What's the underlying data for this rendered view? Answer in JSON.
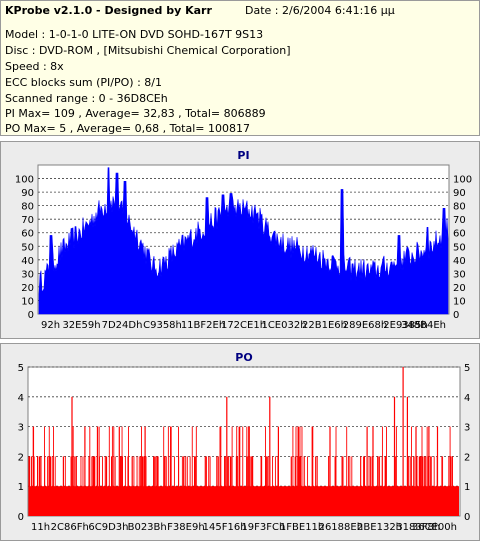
{
  "info": {
    "title": "KProbe v2.1.0 - Designed by Karr",
    "date": "Date : 2/6/2004 6:41:16 μμ",
    "lines": [
      "Model : 1-0-1-0 LITE-ON DVD SOHD-167T    9S13",
      "Disc : DVD-ROM ,  [Mitsubishi Chemical Corporation]",
      "Speed : 8x",
      "ECC blocks sum (PI/PO) : 8/1",
      "Scanned range : 0 - 36D8CEh",
      "PI Max= 109 , Average= 32,83 , Total= 806889",
      "PO Max= 5 , Average= 0,68 , Total= 100817"
    ]
  },
  "chart_data": [
    {
      "type": "area",
      "title": "PI",
      "ylim": [
        0,
        110
      ],
      "yticks": [
        0,
        10,
        20,
        30,
        40,
        50,
        60,
        70,
        80,
        90,
        100
      ],
      "xlabels": [
        "92h",
        "32E59h",
        "7D24Dh",
        "C9358h",
        "11BF2Eh",
        "172CE1h",
        "1CE032h",
        "22B1E6h",
        "289E68h",
        "2E9385h",
        "348B4Eh"
      ],
      "grid": true,
      "color": "#0000ff",
      "profile": [
        [
          0,
          22
        ],
        [
          2,
          30
        ],
        [
          5,
          44
        ],
        [
          8,
          55
        ],
        [
          10,
          60
        ],
        [
          12,
          66
        ],
        [
          14,
          74
        ],
        [
          16,
          80
        ],
        [
          18,
          83
        ],
        [
          20,
          76
        ],
        [
          22,
          68
        ],
        [
          24,
          58
        ],
        [
          26,
          46
        ],
        [
          27,
          40
        ],
        [
          28,
          34
        ],
        [
          30,
          36
        ],
        [
          33,
          45
        ],
        [
          37,
          56
        ],
        [
          40,
          63
        ],
        [
          44,
          72
        ],
        [
          48,
          78
        ],
        [
          52,
          76
        ],
        [
          54,
          70
        ],
        [
          56,
          62
        ],
        [
          58,
          56
        ],
        [
          61,
          50
        ],
        [
          64,
          48
        ],
        [
          67,
          45
        ],
        [
          70,
          40
        ],
        [
          73,
          37
        ],
        [
          76,
          33
        ],
        [
          79,
          33
        ],
        [
          81,
          31
        ],
        [
          84,
          34
        ],
        [
          87,
          37
        ],
        [
          90,
          42
        ],
        [
          93,
          45
        ],
        [
          96,
          50
        ],
        [
          98,
          56
        ],
        [
          100,
          64
        ]
      ],
      "spikes": [
        [
          3,
          58
        ],
        [
          17,
          108
        ],
        [
          19,
          104
        ],
        [
          21,
          98
        ],
        [
          41,
          86
        ],
        [
          45,
          88
        ],
        [
          47,
          89
        ],
        [
          53,
          74
        ],
        [
          74,
          92
        ],
        [
          88,
          58
        ],
        [
          95,
          64
        ],
        [
          99,
          78
        ]
      ],
      "noise": 9
    },
    {
      "type": "bar",
      "title": "PO",
      "ylim": [
        0,
        5
      ],
      "yticks": [
        0,
        1,
        2,
        3,
        4,
        5
      ],
      "xlabels": [
        "11h",
        "2C86Fh",
        "6C9D3h",
        "B023Bh",
        "F38E9h",
        "145F16h",
        "19F3FCh",
        "1FBE11h",
        "26188Eh",
        "2BE132h",
        "3183F8h",
        "36CE00h"
      ],
      "grid": true,
      "color": "#ff0000",
      "base": 1,
      "spikes": [
        [
          0,
          2
        ],
        [
          2,
          2
        ],
        [
          5,
          2
        ],
        [
          8,
          2
        ],
        [
          10,
          4
        ],
        [
          11,
          2
        ],
        [
          13,
          3
        ],
        [
          15,
          2
        ],
        [
          18,
          2
        ],
        [
          21,
          3
        ],
        [
          24,
          2
        ],
        [
          27,
          3
        ],
        [
          30,
          2
        ],
        [
          33,
          2
        ],
        [
          36,
          2
        ],
        [
          41,
          2
        ],
        [
          46,
          4
        ],
        [
          49,
          3
        ],
        [
          52,
          2
        ],
        [
          56,
          4
        ],
        [
          58,
          3
        ],
        [
          61,
          2
        ],
        [
          64,
          2
        ],
        [
          67,
          2
        ],
        [
          70,
          3
        ],
        [
          73,
          2
        ],
        [
          78,
          2
        ],
        [
          80,
          3
        ],
        [
          83,
          2
        ],
        [
          85,
          4
        ],
        [
          87,
          5
        ],
        [
          88,
          4
        ],
        [
          90,
          3
        ],
        [
          93,
          3
        ],
        [
          95,
          3
        ],
        [
          98,
          2
        ]
      ],
      "extra_spikes": 220
    }
  ]
}
